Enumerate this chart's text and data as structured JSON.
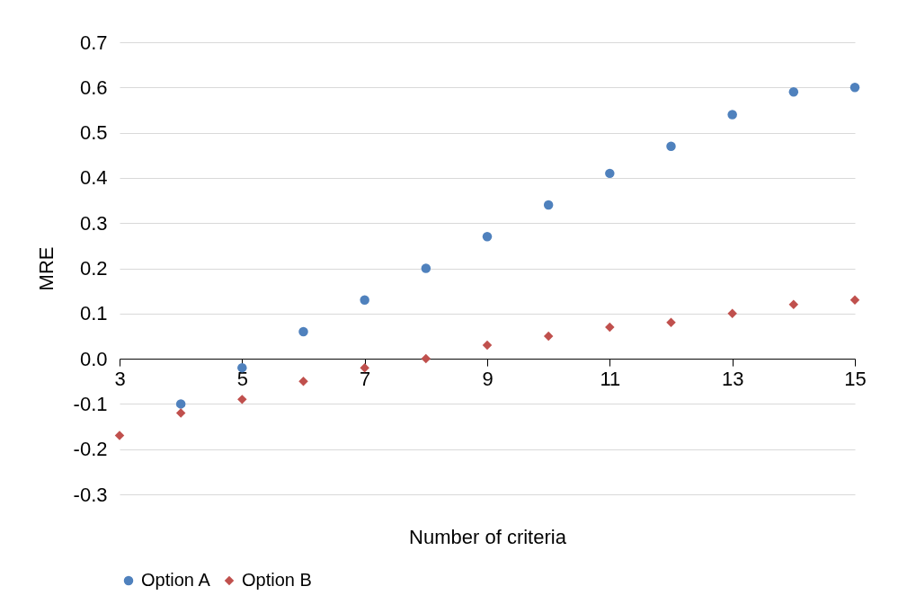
{
  "chart_data": {
    "type": "scatter",
    "xlabel": "Number of criteria",
    "ylabel": "MRE",
    "xlim": [
      3,
      15
    ],
    "xticks": [
      3,
      5,
      7,
      9,
      11,
      13,
      15
    ],
    "ylim": [
      -0.3,
      0.7
    ],
    "yticks": [
      -0.3,
      -0.2,
      -0.1,
      {
        "value": 0,
        "label": "0.0"
      },
      0.1,
      0.2,
      0.3,
      0.4,
      0.5,
      0.6,
      0.7
    ],
    "grid": "y",
    "legend": "bottom",
    "series": [
      {
        "name": "Option A",
        "color": "#4f81bd",
        "marker": "circle",
        "x": [
          4,
          5,
          6,
          7,
          8,
          9,
          10,
          11,
          12,
          13,
          14,
          15
        ],
        "values": [
          -0.1,
          -0.02,
          0.06,
          0.13,
          0.2,
          0.27,
          0.34,
          0.41,
          0.47,
          0.54,
          0.59,
          0.6
        ]
      },
      {
        "name": "Option B",
        "color": "#c0504d",
        "marker": "diamond",
        "x": [
          3,
          4,
          5,
          6,
          7,
          8,
          9,
          10,
          11,
          12,
          13,
          14,
          15
        ],
        "values": [
          -0.17,
          -0.12,
          -0.09,
          -0.05,
          -0.02,
          0.0,
          0.03,
          0.05,
          0.07,
          0.08,
          0.1,
          0.12,
          0.13
        ]
      }
    ]
  }
}
